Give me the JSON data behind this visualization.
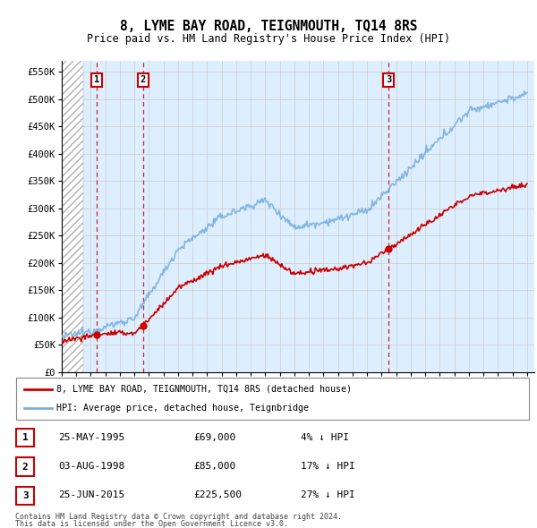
{
  "title": "8, LYME BAY ROAD, TEIGNMOUTH, TQ14 8RS",
  "subtitle": "Price paid vs. HM Land Registry's House Price Index (HPI)",
  "ylim": [
    0,
    570000
  ],
  "yticks": [
    0,
    50000,
    100000,
    150000,
    200000,
    250000,
    300000,
    350000,
    400000,
    450000,
    500000,
    550000
  ],
  "ytick_labels": [
    "£0",
    "£50K",
    "£100K",
    "£150K",
    "£200K",
    "£250K",
    "£300K",
    "£350K",
    "£400K",
    "£450K",
    "£500K",
    "£550K"
  ],
  "hpi_color": "#7ab0e0",
  "price_color": "#cc0000",
  "marker_color": "#cc0000",
  "dashed_line_color": "#cc0000",
  "transaction_dates": [
    1995.39,
    1998.59,
    2015.48
  ],
  "transaction_prices": [
    69000,
    85000,
    225500
  ],
  "transaction_labels": [
    "1",
    "2",
    "3"
  ],
  "legend_line1": "8, LYME BAY ROAD, TEIGNMOUTH, TQ14 8RS (detached house)",
  "legend_line2": "HPI: Average price, detached house, Teignbridge",
  "table_rows": [
    [
      "1",
      "25-MAY-1995",
      "£69,000",
      "4% ↓ HPI"
    ],
    [
      "2",
      "03-AUG-1998",
      "£85,000",
      "17% ↓ HPI"
    ],
    [
      "3",
      "25-JUN-2015",
      "£225,500",
      "27% ↓ HPI"
    ]
  ],
  "footnote1": "Contains HM Land Registry data © Crown copyright and database right 2024.",
  "footnote2": "This data is licensed under the Open Government Licence v3.0.",
  "grid_color": "#cccccc",
  "background_color": "#ddeeff",
  "hatch_end": 1994.5,
  "xlim": [
    1993,
    2025.5
  ]
}
